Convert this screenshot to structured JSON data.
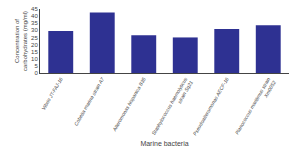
{
  "chart_data": {
    "type": "bar",
    "categories": [
      "Vibrio JT-FAJ-16",
      "Cobetia marina strain A7",
      "Alteromonas hispanica B35",
      "Staphylococcus haemolyticus\nstrain Sq21",
      "Pseudoalteromonas AECF-16",
      "Planococcus maritimus strain\nXm0052"
    ],
    "values": [
      29.5,
      42.5,
      26.5,
      25.0,
      31.0,
      33.5
    ],
    "color": "#2e3192",
    "ylabel": "Concentration of\ncarbohydrates (mg/ml)",
    "xlabel": "Marine bacteria",
    "ylim": [
      0,
      45
    ],
    "yticks": [
      0,
      5,
      10,
      15,
      20,
      25,
      30,
      35,
      40,
      45
    ],
    "grid": false
  }
}
